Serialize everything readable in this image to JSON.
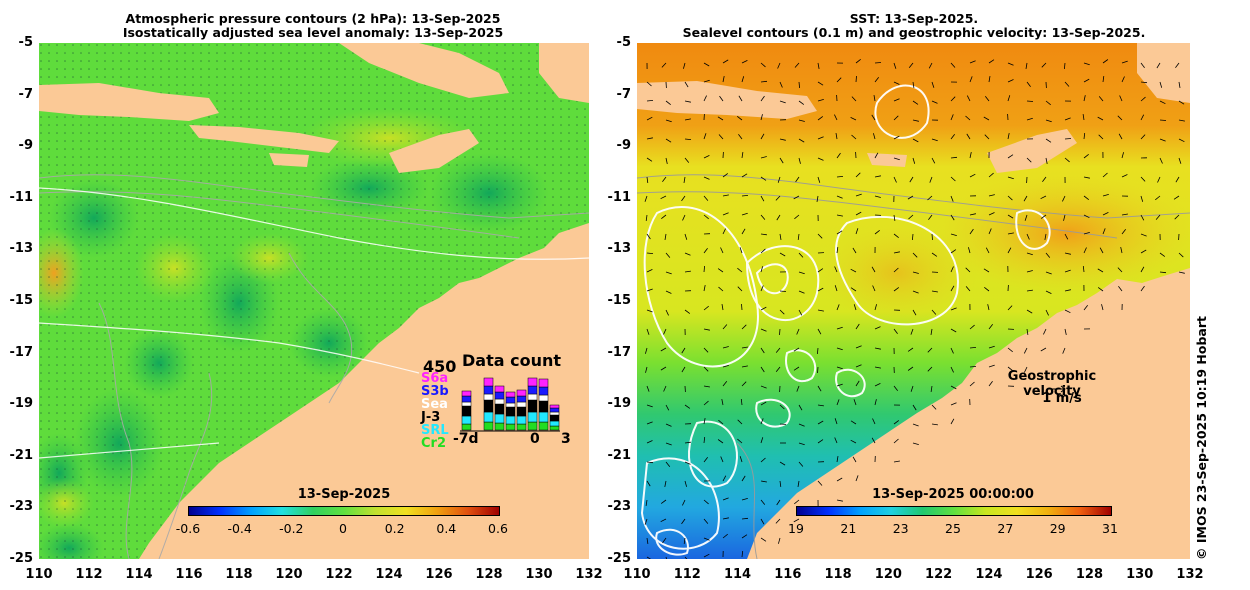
{
  "left_panel": {
    "title_line1": "Atmospheric pressure contours (2 hPa): 13-Sep-2025",
    "title_line2": "Isostatically adjusted sea level anomaly: 13-Sep-2025",
    "colorbar": {
      "title": "13-Sep-2025",
      "labels": [
        "-0.6",
        "-0.4",
        "-0.2",
        "0",
        "0.2",
        "0.4",
        "0.6"
      ],
      "range": [
        -0.6,
        0.6
      ]
    },
    "data_count": {
      "title": "Data count",
      "max_label": "450",
      "satellites": [
        "S6a",
        "S3b",
        "Sea",
        "J-3",
        "SRL",
        "Cr2"
      ],
      "satellite_colors": [
        "#ff22ff",
        "#1a1aff",
        "#ffffff",
        "#000000",
        "#22e8ff",
        "#22dd22"
      ],
      "x_labels": [
        "-7d",
        "0",
        "3"
      ]
    }
  },
  "right_panel": {
    "title_line1": "SST: 13-Sep-2025.",
    "title_line2": "Sealevel contours (0.1 m) and geostrophic velocity: 13-Sep-2025.",
    "colorbar": {
      "title": "13-Sep-2025 00:00:00",
      "labels": [
        "19",
        "21",
        "23",
        "25",
        "27",
        "29",
        "31"
      ],
      "range": [
        19,
        31
      ]
    },
    "velocity_legend": {
      "title": "Geostrophic velocity",
      "value": "1 m/s"
    }
  },
  "axes": {
    "y_labels": [
      "-5",
      "-7",
      "-9",
      "-11",
      "-13",
      "-15",
      "-17",
      "-19",
      "-21",
      "-23",
      "-25"
    ],
    "x_labels": [
      "110",
      "112",
      "114",
      "116",
      "118",
      "120",
      "122",
      "124",
      "126",
      "128",
      "130",
      "132"
    ]
  },
  "credit": "© IMOS 23-Sep-2025 10:19 Hobart",
  "colors": {
    "land": "#fbc996",
    "sla_green": "#5fe03a",
    "sst_yellow": "#e8e020",
    "sst_orange": "#f08a10"
  }
}
